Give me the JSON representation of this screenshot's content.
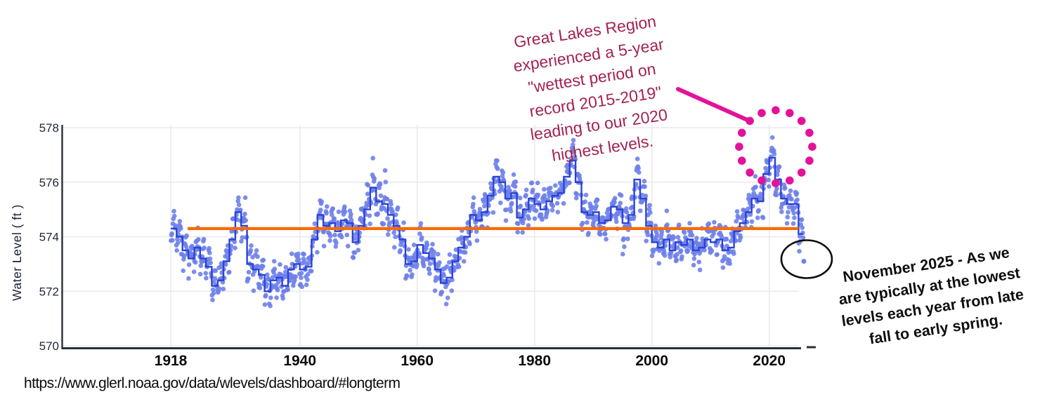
{
  "source_url": "https://www.glerl.noaa.gov/data/wlevels/dashboard/#longterm",
  "chart_data": {
    "type": "scatter",
    "title": "",
    "xlabel": "",
    "ylabel": "Water Level ( ft )",
    "xlim": [
      1914,
      2028
    ],
    "ylim": [
      570,
      578
    ],
    "x_ticks": [
      1918,
      1940,
      1960,
      1980,
      2000,
      2020
    ],
    "y_ticks": [
      570,
      572,
      574,
      576,
      578
    ],
    "grid": true,
    "legend_position": "none",
    "series": [
      {
        "name": "Monthly mean water level",
        "type": "scatter",
        "color": "#6E81E9"
      },
      {
        "name": "Annual mean water level",
        "type": "step",
        "color": "#2B43D6",
        "start_year": 1918,
        "values": [
          574.3,
          574.0,
          573.5,
          573.2,
          573.6,
          573.2,
          572.9,
          572.2,
          572.4,
          573.1,
          573.9,
          574.9,
          574.4,
          573.0,
          572.8,
          572.6,
          572.0,
          572.4,
          572.5,
          572.2,
          572.8,
          573.0,
          572.8,
          572.9,
          573.9,
          574.8,
          574.4,
          574.5,
          574.2,
          574.6,
          574.5,
          573.8,
          574.4,
          575.0,
          575.8,
          575.3,
          575.2,
          574.8,
          574.4,
          573.9,
          573.0,
          573.1,
          573.7,
          573.4,
          573.2,
          572.8,
          572.3,
          572.5,
          573.1,
          573.6,
          574.0,
          574.8,
          574.6,
          574.9,
          575.5,
          576.2,
          576.0,
          575.4,
          575.6,
          574.7,
          575.0,
          575.4,
          575.2,
          575.0,
          575.3,
          575.5,
          575.6,
          576.2,
          576.8,
          576.0,
          574.9,
          574.8,
          574.9,
          574.5,
          574.6,
          575.1,
          575.0,
          574.5,
          574.8,
          576.1,
          575.4,
          574.4,
          573.8,
          573.6,
          573.9,
          573.5,
          573.8,
          573.7,
          573.9,
          573.5,
          573.6,
          573.9,
          573.8,
          573.9,
          573.5,
          573.6,
          574.2,
          574.5,
          574.9,
          575.4,
          575.3,
          576.3,
          576.9,
          576.1,
          575.4,
          575.2,
          575.2,
          574.1
        ]
      },
      {
        "name": "Long-term average",
        "type": "hline",
        "color": "#F96A07",
        "value": 574.3
      }
    ],
    "highlights": {
      "record_high_circle": {
        "year": 2021.1,
        "level": 577.3
      },
      "november_2025_point": {
        "year": 2025.9,
        "level": 573.1
      }
    }
  },
  "annotations": {
    "wettest_period": {
      "text": "Great Lakes Region\nexperienced a 5-year\n\"wettest period on\nrecord 2015-2019\"\nleading to our 2020\nhighest levels.",
      "color": "#A42252"
    },
    "november_note": {
      "text": "November 2025 - As we\nare typically at the lowest\nlevels each year from late\nfall to early spring.",
      "color": "#0D0D0D"
    },
    "callout_color": "#E3129A",
    "lowpoint_ellipse_color": "#0D0D0D"
  },
  "axis": {
    "tick_color": "#23273a",
    "x_label_color": "#0b0b0d",
    "axis_line_color": "#2b2f38",
    "grid_color": "#e9e9ee"
  }
}
